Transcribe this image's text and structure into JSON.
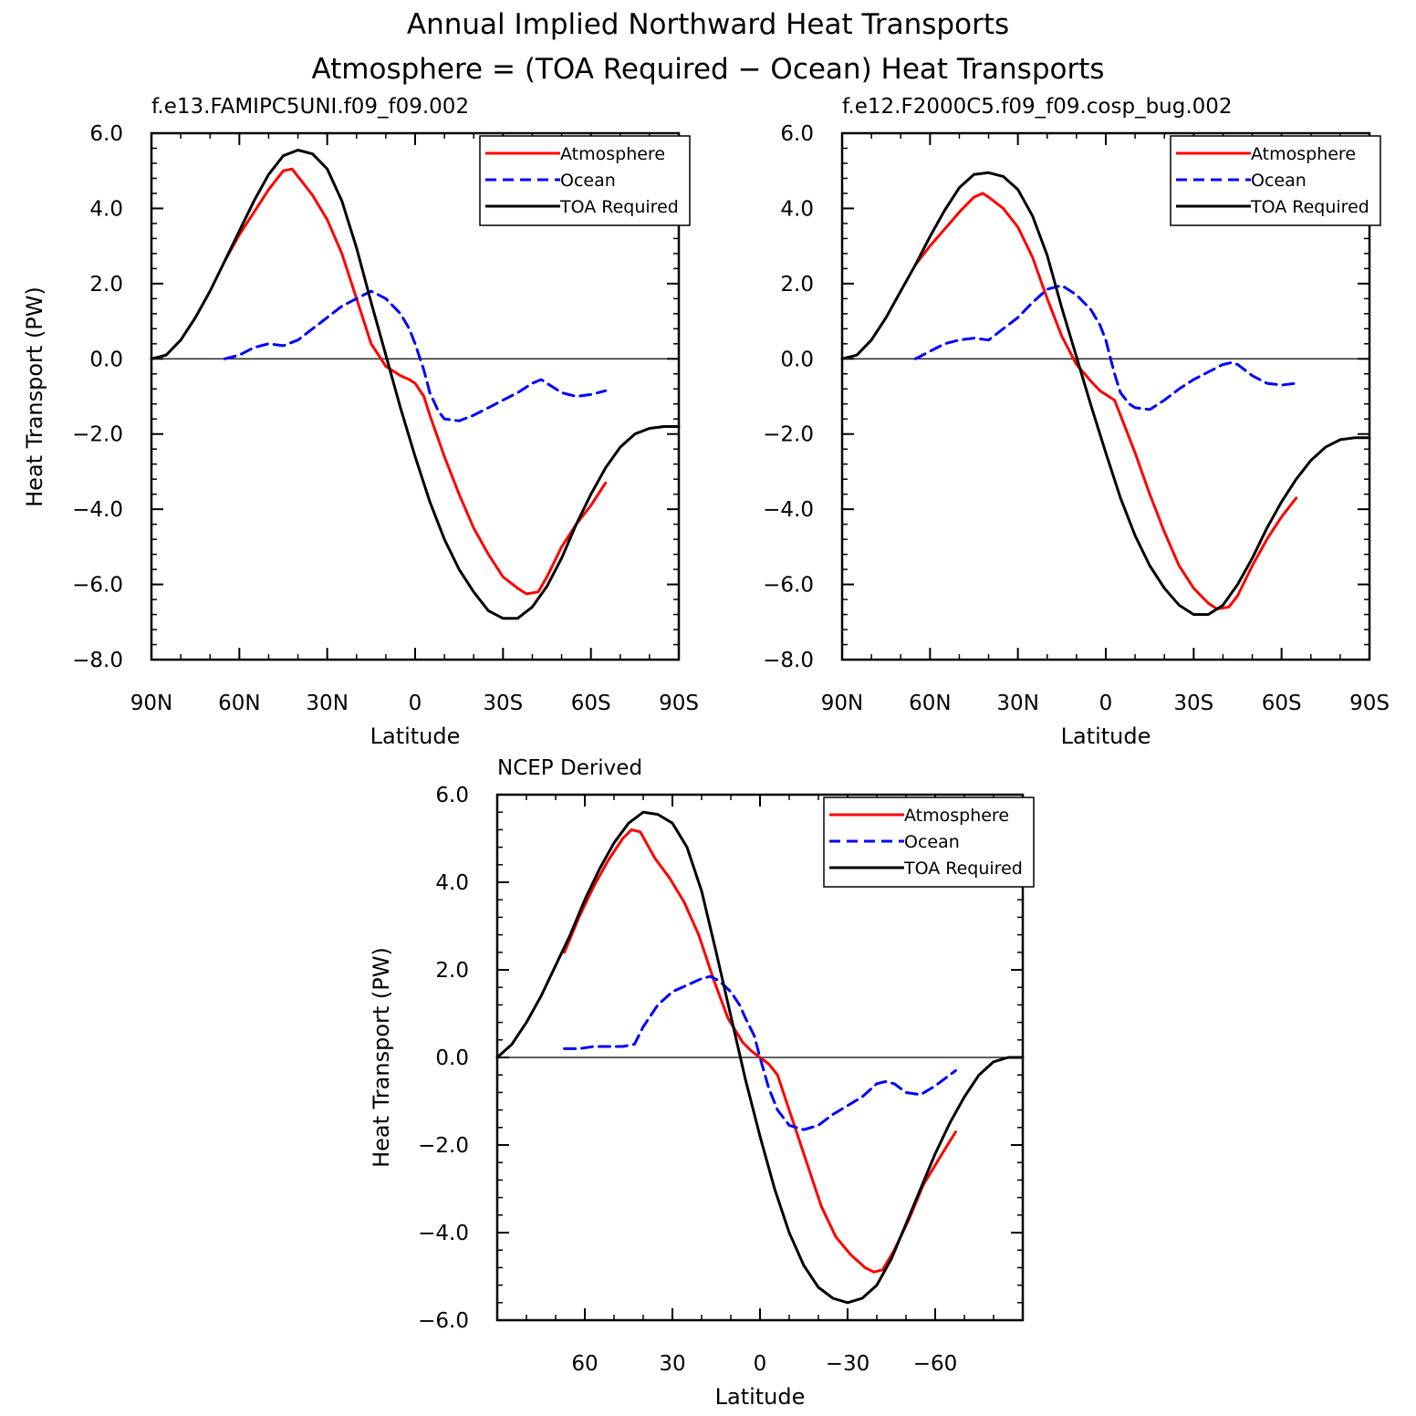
{
  "figure": {
    "title_line1": "Annual Implied Northward Heat Transports",
    "title_line2": "Atmosphere = (TOA Required − Ocean) Heat Transports"
  },
  "colors": {
    "atmosphere": "#ff0000",
    "ocean": "#0000ff",
    "toa": "#000000"
  },
  "chart_data": [
    {
      "type": "line",
      "panel": "top-left",
      "title": "f.e13.FAMIPC5UNI.f09_f09.002",
      "xlabel": "Latitude",
      "ylabel": "Heat Transport (PW)",
      "xlim": [
        90,
        -90
      ],
      "ylim": [
        -8,
        6
      ],
      "xticks": [
        90,
        60,
        30,
        0,
        -30,
        -60,
        -90
      ],
      "xtick_labels": [
        "90N",
        "60N",
        "30N",
        "0",
        "30S",
        "60S",
        "90S"
      ],
      "yticks": [
        6,
        4,
        2,
        0,
        -2,
        -4,
        -6,
        -8
      ],
      "ytick_labels": [
        "6.0",
        "4.0",
        "2.0",
        "0.0",
        "−2.0",
        "−4.0",
        "−6.0",
        "−8.0"
      ],
      "legend_position": "top-right",
      "series": [
        {
          "name": "Atmosphere",
          "key": "atm",
          "x": [
            65,
            60,
            55,
            50,
            45,
            42,
            40,
            35,
            30,
            25,
            20,
            15,
            10,
            5,
            2,
            0,
            -3,
            -5,
            -10,
            -15,
            -20,
            -25,
            -30,
            -35,
            -38,
            -42,
            -45,
            -50,
            -55,
            -60,
            -65
          ],
          "y": [
            2.6,
            3.3,
            3.9,
            4.5,
            5.0,
            5.05,
            4.85,
            4.35,
            3.7,
            2.8,
            1.6,
            0.4,
            -0.2,
            -0.45,
            -0.55,
            -0.65,
            -1.0,
            -1.5,
            -2.6,
            -3.6,
            -4.5,
            -5.2,
            -5.8,
            -6.1,
            -6.25,
            -6.2,
            -5.8,
            -5.0,
            -4.4,
            -3.9,
            -3.3
          ]
        },
        {
          "name": "Ocean",
          "key": "ocean",
          "x": [
            65,
            60,
            55,
            50,
            45,
            40,
            35,
            30,
            25,
            20,
            15,
            10,
            5,
            2,
            0,
            -3,
            -5,
            -8,
            -10,
            -15,
            -20,
            -25,
            -30,
            -35,
            -40,
            -43,
            -45,
            -50,
            -55,
            -60,
            -65
          ],
          "y": [
            0.0,
            0.1,
            0.3,
            0.4,
            0.35,
            0.5,
            0.8,
            1.1,
            1.4,
            1.6,
            1.8,
            1.6,
            1.2,
            0.8,
            0.4,
            -0.3,
            -0.9,
            -1.4,
            -1.6,
            -1.65,
            -1.5,
            -1.3,
            -1.1,
            -0.9,
            -0.65,
            -0.55,
            -0.65,
            -0.9,
            -1.0,
            -0.95,
            -0.85
          ]
        },
        {
          "name": "TOA Required",
          "key": "toa",
          "x": [
            90,
            85,
            80,
            75,
            70,
            65,
            60,
            55,
            50,
            45,
            40,
            35,
            30,
            25,
            20,
            15,
            10,
            5,
            0,
            -5,
            -10,
            -15,
            -20,
            -25,
            -30,
            -35,
            -40,
            -45,
            -50,
            -55,
            -60,
            -65,
            -70,
            -75,
            -80,
            -85,
            -90
          ],
          "y": [
            0.0,
            0.1,
            0.5,
            1.1,
            1.8,
            2.6,
            3.4,
            4.2,
            4.9,
            5.4,
            5.55,
            5.45,
            5.05,
            4.2,
            2.95,
            1.5,
            0.1,
            -1.3,
            -2.6,
            -3.8,
            -4.8,
            -5.6,
            -6.2,
            -6.7,
            -6.9,
            -6.9,
            -6.6,
            -6.05,
            -5.3,
            -4.4,
            -3.6,
            -2.9,
            -2.35,
            -2.0,
            -1.85,
            -1.8,
            -1.8
          ]
        }
      ]
    },
    {
      "type": "line",
      "panel": "top-right",
      "title": "f.e12.F2000C5.f09_f09.cosp_bug.002",
      "xlabel": "Latitude",
      "ylabel": "",
      "xlim": [
        90,
        -90
      ],
      "ylim": [
        -8,
        6
      ],
      "xticks": [
        90,
        60,
        30,
        0,
        -30,
        -60,
        -90
      ],
      "xtick_labels": [
        "90N",
        "60N",
        "30N",
        "0",
        "30S",
        "60S",
        "90S"
      ],
      "yticks": [
        6,
        4,
        2,
        0,
        -2,
        -4,
        -6,
        -8
      ],
      "ytick_labels": [
        "6.0",
        "4.0",
        "2.0",
        "0.0",
        "−2.0",
        "−4.0",
        "−6.0",
        "−8.0"
      ],
      "legend_position": "top-right",
      "series": [
        {
          "name": "Atmosphere",
          "key": "atm",
          "x": [
            65,
            60,
            55,
            50,
            45,
            42,
            40,
            35,
            30,
            25,
            20,
            15,
            10,
            5,
            2,
            0,
            -3,
            -5,
            -10,
            -15,
            -20,
            -25,
            -30,
            -35,
            -38,
            -42,
            -45,
            -50,
            -55,
            -60,
            -65
          ],
          "y": [
            2.5,
            3.0,
            3.45,
            3.9,
            4.3,
            4.4,
            4.3,
            4.0,
            3.5,
            2.7,
            1.6,
            0.6,
            -0.15,
            -0.6,
            -0.85,
            -0.95,
            -1.1,
            -1.5,
            -2.5,
            -3.6,
            -4.6,
            -5.5,
            -6.1,
            -6.5,
            -6.65,
            -6.6,
            -6.3,
            -5.5,
            -4.8,
            -4.2,
            -3.7
          ]
        },
        {
          "name": "Ocean",
          "key": "ocean",
          "x": [
            65,
            60,
            55,
            50,
            45,
            40,
            35,
            30,
            25,
            20,
            15,
            10,
            5,
            2,
            0,
            -3,
            -5,
            -8,
            -10,
            -15,
            -20,
            -25,
            -30,
            -35,
            -40,
            -43,
            -45,
            -50,
            -55,
            -60,
            -65
          ],
          "y": [
            0.0,
            0.2,
            0.4,
            0.5,
            0.55,
            0.5,
            0.8,
            1.1,
            1.5,
            1.85,
            1.95,
            1.7,
            1.3,
            0.9,
            0.5,
            -0.4,
            -0.9,
            -1.2,
            -1.3,
            -1.35,
            -1.1,
            -0.8,
            -0.55,
            -0.35,
            -0.15,
            -0.1,
            -0.15,
            -0.45,
            -0.65,
            -0.7,
            -0.65
          ]
        },
        {
          "name": "TOA Required",
          "key": "toa",
          "x": [
            90,
            85,
            80,
            75,
            70,
            65,
            60,
            55,
            50,
            45,
            40,
            35,
            30,
            25,
            20,
            15,
            10,
            5,
            0,
            -5,
            -10,
            -15,
            -20,
            -25,
            -30,
            -35,
            -40,
            -45,
            -50,
            -55,
            -60,
            -65,
            -70,
            -75,
            -80,
            -85,
            -90
          ],
          "y": [
            0.0,
            0.1,
            0.5,
            1.1,
            1.8,
            2.5,
            3.25,
            3.95,
            4.55,
            4.9,
            4.95,
            4.85,
            4.5,
            3.8,
            2.75,
            1.35,
            0.05,
            -1.25,
            -2.5,
            -3.7,
            -4.7,
            -5.5,
            -6.1,
            -6.55,
            -6.8,
            -6.8,
            -6.55,
            -6.0,
            -5.3,
            -4.5,
            -3.8,
            -3.2,
            -2.7,
            -2.35,
            -2.15,
            -2.1,
            -2.1
          ]
        }
      ]
    },
    {
      "type": "line",
      "panel": "bottom",
      "title": "NCEP Derived",
      "xlabel": "Latitude",
      "ylabel": "Heat Transport (PW)",
      "xlim": [
        90,
        -90
      ],
      "ylim": [
        -6,
        6
      ],
      "xticks": [
        60,
        30,
        0,
        -30,
        -60
      ],
      "xtick_labels": [
        "60",
        "30",
        "0",
        "−30",
        "−60"
      ],
      "yticks": [
        6,
        4,
        2,
        0,
        -2,
        -4,
        -6
      ],
      "ytick_labels": [
        "6.0",
        "4.0",
        "2.0",
        "0.0",
        "−2.0",
        "−4.0",
        "−6.0"
      ],
      "legend_position": "top-right",
      "series": [
        {
          "name": "Atmosphere",
          "key": "atm",
          "x": [
            67,
            62,
            57,
            52,
            47,
            44,
            41,
            36,
            31,
            26,
            21,
            16,
            11,
            6,
            3,
            0,
            -3,
            -6,
            -11,
            -16,
            -21,
            -26,
            -31,
            -36,
            -39,
            -42,
            -46,
            -51,
            -56,
            -61,
            -67
          ],
          "y": [
            2.4,
            3.2,
            3.9,
            4.5,
            5.0,
            5.2,
            5.15,
            4.55,
            4.1,
            3.55,
            2.8,
            1.8,
            0.9,
            0.35,
            0.15,
            0.0,
            -0.15,
            -0.4,
            -1.4,
            -2.4,
            -3.4,
            -4.1,
            -4.5,
            -4.8,
            -4.9,
            -4.85,
            -4.4,
            -3.7,
            -2.9,
            -2.35,
            -1.7
          ]
        },
        {
          "name": "Ocean",
          "key": "ocean",
          "x": [
            67,
            62,
            57,
            52,
            47,
            43,
            40,
            35,
            30,
            25,
            20,
            17,
            14,
            10,
            7,
            5,
            2,
            0,
            -3,
            -6,
            -10,
            -15,
            -20,
            -25,
            -30,
            -35,
            -40,
            -43,
            -46,
            -50,
            -55,
            -60,
            -67
          ],
          "y": [
            0.2,
            0.2,
            0.25,
            0.25,
            0.25,
            0.3,
            0.7,
            1.2,
            1.5,
            1.65,
            1.8,
            1.85,
            1.75,
            1.5,
            1.2,
            0.9,
            0.5,
            0.0,
            -0.7,
            -1.2,
            -1.55,
            -1.65,
            -1.55,
            -1.3,
            -1.1,
            -0.9,
            -0.6,
            -0.55,
            -0.6,
            -0.8,
            -0.85,
            -0.65,
            -0.3
          ]
        },
        {
          "name": "TOA Required",
          "key": "toa",
          "x": [
            90,
            85,
            80,
            75,
            70,
            65,
            60,
            55,
            50,
            45,
            40,
            35,
            30,
            25,
            20,
            15,
            10,
            5,
            0,
            -5,
            -10,
            -15,
            -20,
            -25,
            -30,
            -35,
            -40,
            -45,
            -50,
            -55,
            -60,
            -65,
            -70,
            -75,
            -80,
            -85,
            -90
          ],
          "y": [
            0.0,
            0.3,
            0.8,
            1.4,
            2.1,
            2.8,
            3.6,
            4.3,
            4.9,
            5.35,
            5.6,
            5.55,
            5.35,
            4.8,
            3.8,
            2.4,
            0.95,
            -0.5,
            -1.8,
            -3.0,
            -4.0,
            -4.75,
            -5.25,
            -5.5,
            -5.6,
            -5.5,
            -5.2,
            -4.6,
            -3.8,
            -3.0,
            -2.2,
            -1.5,
            -0.9,
            -0.4,
            -0.1,
            0.0,
            0.0
          ]
        }
      ]
    }
  ]
}
